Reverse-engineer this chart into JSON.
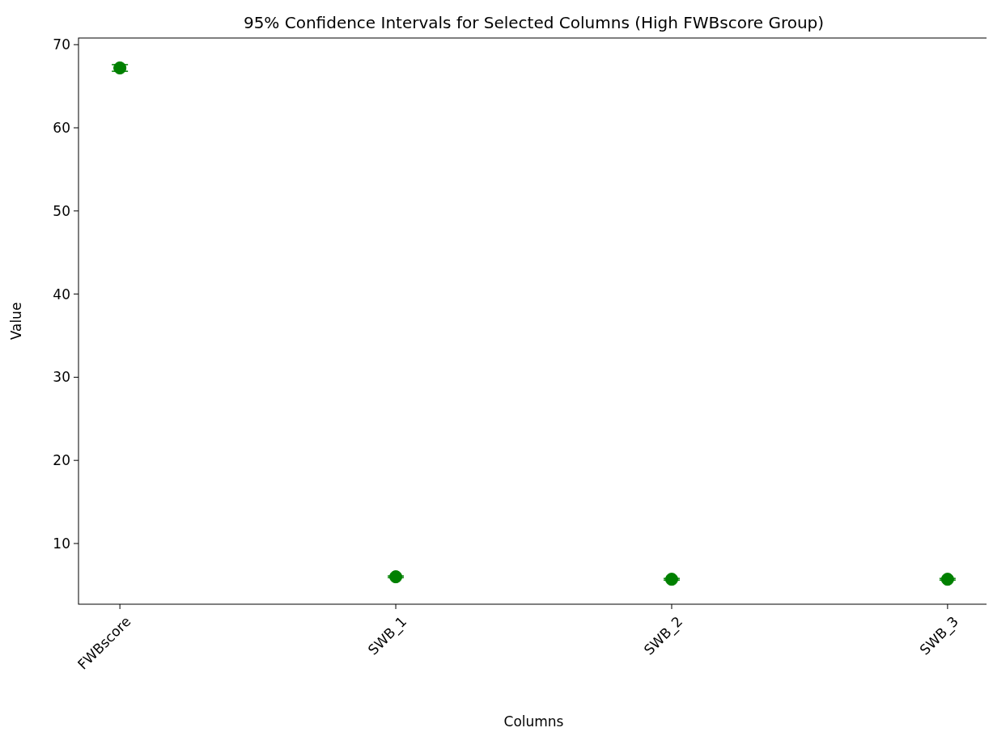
{
  "chart_data": {
    "type": "scatter",
    "title": "95% Confidence Intervals for Selected Columns (High FWBscore Group)",
    "xlabel": "Columns",
    "ylabel": "Value",
    "categories": [
      "FWBscore",
      "SWB_1",
      "SWB_2",
      "SWB_3"
    ],
    "series": [
      {
        "color": "#008000",
        "values": [
          67.2,
          6.0,
          5.7,
          5.7
        ],
        "errors": [
          0.4,
          0.1,
          0.1,
          0.1
        ]
      }
    ],
    "ylim": [
      2.7,
      70.8
    ],
    "yticks": [
      10,
      20,
      30,
      40,
      50,
      60,
      70
    ],
    "marker": "circle"
  }
}
